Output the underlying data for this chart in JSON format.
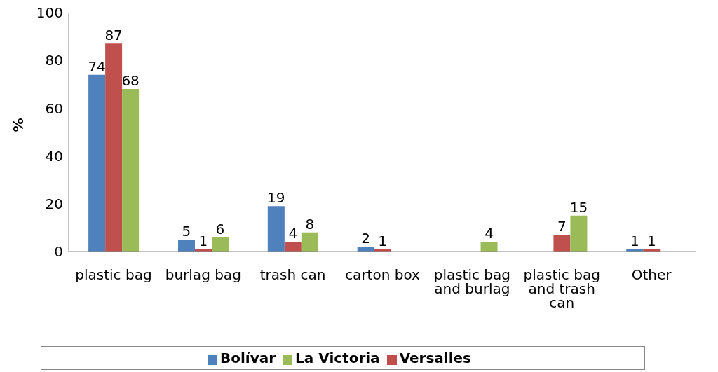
{
  "chart_data": {
    "type": "bar",
    "ylabel": "%",
    "categories": [
      "plastic bag",
      "burlag bag",
      "trash can",
      "carton box",
      "plastic bag and burlag",
      "plastic bag and trash can",
      "Other"
    ],
    "series": [
      {
        "name": "Bolívar",
        "color": "#4f81bd",
        "values": [
          74,
          5,
          19,
          2,
          null,
          null,
          1
        ]
      },
      {
        "name": "Versalles",
        "color": "#c0504d",
        "values": [
          87,
          1,
          4,
          1,
          null,
          7,
          1
        ]
      },
      {
        "name": "La Victoria",
        "color": "#9bbb59",
        "values": [
          68,
          6,
          8,
          null,
          4,
          15,
          null
        ]
      }
    ],
    "ylim": [
      0,
      100
    ],
    "yticks": [
      0,
      20,
      40,
      60,
      80,
      100
    ],
    "grid": false,
    "legend": "bottom",
    "data_labels": true
  }
}
